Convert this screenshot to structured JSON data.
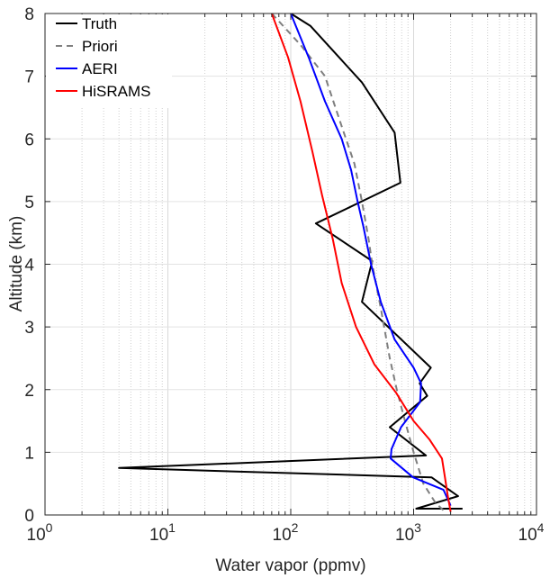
{
  "chart_data": {
    "type": "line",
    "xlabel": "Water vapor (ppmv)",
    "ylabel": "Altitude (km)",
    "xscale": "log",
    "xlim": [
      1,
      10000
    ],
    "ylim": [
      0,
      8
    ],
    "x_ticks": [
      {
        "base": "10",
        "exp": "0"
      },
      {
        "base": "10",
        "exp": "1"
      },
      {
        "base": "10",
        "exp": "2"
      },
      {
        "base": "10",
        "exp": "3"
      },
      {
        "base": "10",
        "exp": "4"
      }
    ],
    "y_ticks": [
      "0",
      "1",
      "2",
      "3",
      "4",
      "5",
      "6",
      "7",
      "8"
    ],
    "grid": true,
    "legend_position": "top-left",
    "series": [
      {
        "name": "Truth",
        "color": "#000000",
        "dash": "solid",
        "points": [
          [
            100,
            8
          ],
          [
            145,
            7.8
          ],
          [
            380,
            6.9
          ],
          [
            700,
            6.1
          ],
          [
            780,
            5.3
          ],
          [
            160,
            4.65
          ],
          [
            460,
            4.05
          ],
          [
            380,
            3.4
          ],
          [
            1380,
            2.35
          ],
          [
            1120,
            2.1
          ],
          [
            1290,
            1.9
          ],
          [
            640,
            1.4
          ],
          [
            1260,
            0.95
          ],
          [
            4,
            0.75
          ],
          [
            1400,
            0.6
          ],
          [
            2300,
            0.3
          ],
          [
            1050,
            0.1
          ],
          [
            2500,
            0.1
          ]
        ]
      },
      {
        "name": "Priori",
        "color": "#7f7f7f",
        "dash": "dashed",
        "points": [
          [
            70,
            8
          ],
          [
            120,
            7.5
          ],
          [
            190,
            7
          ],
          [
            260,
            6.2
          ],
          [
            330,
            5.6
          ],
          [
            380,
            5
          ],
          [
            430,
            4.4
          ],
          [
            460,
            4
          ],
          [
            540,
            3.3
          ],
          [
            640,
            2.5
          ],
          [
            730,
            2
          ],
          [
            850,
            1.5
          ],
          [
            1000,
            1
          ],
          [
            1200,
            0.5
          ],
          [
            1500,
            0.2
          ],
          [
            1800,
            0.05
          ]
        ]
      },
      {
        "name": "AERI",
        "color": "#0000ff",
        "dash": "solid",
        "points": [
          [
            100,
            8
          ],
          [
            140,
            7.3
          ],
          [
            190,
            6.6
          ],
          [
            260,
            6
          ],
          [
            310,
            5.5
          ],
          [
            350,
            5
          ],
          [
            390,
            4.6
          ],
          [
            450,
            4
          ],
          [
            540,
            3.4
          ],
          [
            700,
            2.8
          ],
          [
            1000,
            2.35
          ],
          [
            1150,
            2.1
          ],
          [
            1130,
            1.8
          ],
          [
            790,
            1.4
          ],
          [
            660,
            1.05
          ],
          [
            650,
            0.9
          ],
          [
            990,
            0.6
          ],
          [
            1750,
            0.4
          ],
          [
            2000,
            0.15
          ]
        ]
      },
      {
        "name": "HiSRAMS",
        "color": "#ff0000",
        "dash": "solid",
        "points": [
          [
            70,
            8
          ],
          [
            95,
            7.3
          ],
          [
            120,
            6.6
          ],
          [
            150,
            5.8
          ],
          [
            180,
            5.1
          ],
          [
            220,
            4.4
          ],
          [
            260,
            3.7
          ],
          [
            340,
            3
          ],
          [
            480,
            2.4
          ],
          [
            720,
            1.95
          ],
          [
            1000,
            1.5
          ],
          [
            1350,
            1.2
          ],
          [
            1700,
            0.9
          ],
          [
            1800,
            0.6
          ],
          [
            1900,
            0.3
          ],
          [
            2000,
            0.05
          ]
        ]
      }
    ]
  }
}
